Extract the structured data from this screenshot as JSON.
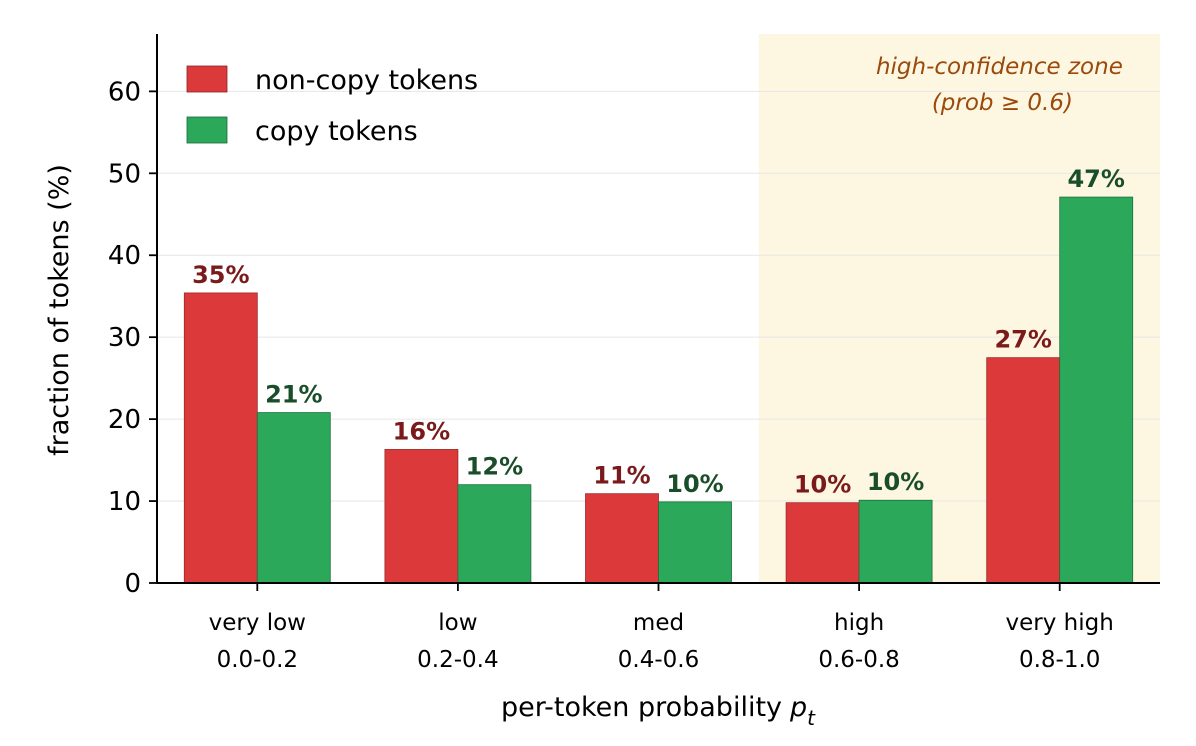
{
  "chart_data": {
    "type": "bar",
    "categories": [
      "very low",
      "low",
      "med",
      "high",
      "very high"
    ],
    "category_ranges": [
      "0.0-0.2",
      "0.2-0.4",
      "0.4-0.6",
      "0.6-0.8",
      "0.8-1.0"
    ],
    "series": [
      {
        "name": "non-copy tokens",
        "values": [
          35.4,
          16.3,
          10.9,
          9.8,
          27.5
        ],
        "labels": [
          "35%",
          "16%",
          "11%",
          "10%",
          "27%"
        ],
        "color": "#dc3a3a",
        "label_color": "#7a1a1a"
      },
      {
        "name": "copy tokens",
        "values": [
          20.8,
          12.0,
          9.9,
          10.1,
          47.1
        ],
        "labels": [
          "21%",
          "12%",
          "10%",
          "10%",
          "47%"
        ],
        "color": "#2ca85a",
        "label_color": "#1a4d2a"
      }
    ],
    "ylabel": "fraction of tokens (%)",
    "xlabel": "per-token probability",
    "xlabel_symbol": "p",
    "xlabel_subscript": "t",
    "ylim": [
      0,
      67
    ],
    "yticks": [
      0,
      10,
      20,
      30,
      40,
      50,
      60
    ],
    "grid": "horizontal",
    "legend_position": "top-left",
    "highlight_zone": {
      "from_category": 3,
      "line1": "high-confidence zone",
      "line2": "(prob  ≥  0.6)",
      "color": "#fdf7e1"
    }
  }
}
